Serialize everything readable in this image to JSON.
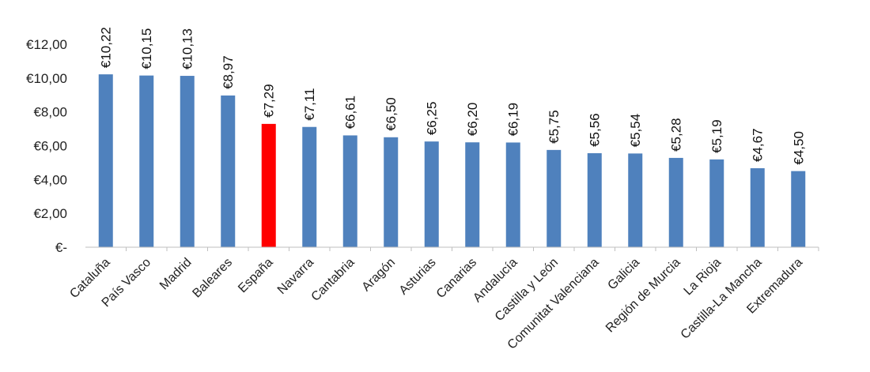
{
  "chart_data": {
    "type": "bar",
    "title": "",
    "xlabel": "",
    "ylabel": "",
    "ylim": [
      0,
      12
    ],
    "yticks": [
      0,
      2,
      4,
      6,
      8,
      10,
      12
    ],
    "ytick_labels": [
      "€-",
      "€2,00",
      "€4,00",
      "€6,00",
      "€8,00",
      "€10,00",
      "€12,00"
    ],
    "grid": false,
    "legend": "none",
    "categories": [
      "Cataluña",
      "País Vasco",
      "Madrid",
      "Baleares",
      "España",
      "Navarra",
      "Cantabria",
      "Aragón",
      "Asturias",
      "Canarias",
      "Andalucía",
      "Castilla y León",
      "Comunitat Valenciana",
      "Galicia",
      "Región de Murcia",
      "La Rioja",
      "Castilla-La Mancha",
      "Extremadura"
    ],
    "values": [
      10.22,
      10.15,
      10.13,
      8.97,
      7.29,
      7.11,
      6.61,
      6.5,
      6.25,
      6.2,
      6.19,
      5.75,
      5.56,
      5.54,
      5.28,
      5.19,
      4.67,
      4.5
    ],
    "data_labels": [
      "€10,22",
      "€10,15",
      "€10,13",
      "€8,97",
      "€7,29",
      "€7,11",
      "€6,61",
      "€6,50",
      "€6,25",
      "€6,20",
      "€6,19",
      "€5,75",
      "€5,56",
      "€5,54",
      "€5,28",
      "€5,19",
      "€4,67",
      "€4,50"
    ],
    "colors": {
      "default": "#4F81BD",
      "highlight": "#FF0000",
      "axis": "#BFBFBF"
    },
    "highlight_category": "España"
  }
}
